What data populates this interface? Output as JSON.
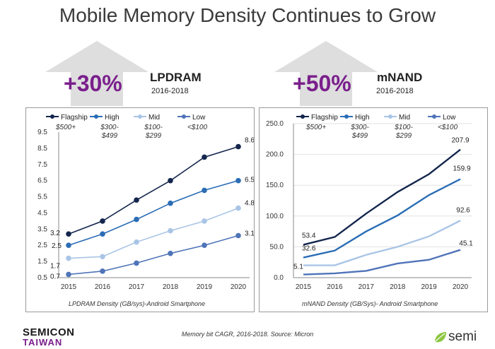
{
  "page": {
    "title": "Mobile Memory Density Continues to Grow",
    "footnote": "Memory bit CAGR, 2016-2018. Source: Micron",
    "logo_left_line1": "SEMICON",
    "logo_left_line2": "TAIWAN",
    "logo_right": "semi"
  },
  "left": {
    "growth": "+30%",
    "category": "LPDRAM",
    "years": "2016-2018",
    "caption": "LPDRAM Density (GB/sys)-Android Smartphone"
  },
  "right": {
    "growth": "+50%",
    "category": "mNAND",
    "years": "2016-2018",
    "caption": "mNAND Density (GB/Sys)- Android Smartphone"
  },
  "colors": {
    "flagship": "#14264d",
    "high": "#2a6db5",
    "mid": "#a9c5e6",
    "low": "#4f74b8",
    "accent": "#7a1f8c",
    "arrow": "#d9d9d9"
  },
  "chart_data": [
    {
      "type": "line",
      "x": [
        "2015",
        "2016",
        "2017",
        "2018",
        "2019",
        "2020"
      ],
      "yticks": [
        "0.5",
        "1.5",
        "2.5",
        "3.5",
        "4.5",
        "5.5",
        "6.5",
        "7.5",
        "8.5",
        "9.5"
      ],
      "ylim": [
        0.5,
        9.5
      ],
      "series": [
        {
          "key": "flagship",
          "name": "Flagship",
          "price": "$500+",
          "values": [
            3.2,
            4.0,
            5.3,
            6.5,
            7.95,
            8.6
          ]
        },
        {
          "key": "high",
          "name": "High",
          "price": "$300-\n$499",
          "values": [
            2.5,
            3.2,
            4.1,
            5.1,
            5.9,
            6.5
          ]
        },
        {
          "key": "mid",
          "name": "Mid",
          "price": "$100-\n$299",
          "values": [
            1.7,
            1.8,
            2.7,
            3.4,
            4.0,
            4.8
          ]
        },
        {
          "key": "low",
          "name": "Low",
          "price": "<$100",
          "values": [
            0.7,
            0.9,
            1.4,
            2.0,
            2.5,
            3.1
          ]
        }
      ],
      "data_labels": [
        {
          "series": 0,
          "index": 0,
          "text": "3.2"
        },
        {
          "series": 1,
          "index": 0,
          "text": "2.5"
        },
        {
          "series": 2,
          "index": 0,
          "text": "1.7"
        },
        {
          "series": 3,
          "index": 0,
          "text": "0.7"
        },
        {
          "series": 0,
          "index": 5,
          "text": "8.6"
        },
        {
          "series": 1,
          "index": 5,
          "text": "6.5"
        },
        {
          "series": 2,
          "index": 5,
          "text": "4.8"
        },
        {
          "series": 3,
          "index": 5,
          "text": "3.1"
        }
      ],
      "markers": true,
      "legend": "top",
      "grid": false
    },
    {
      "type": "line",
      "x": [
        "2015",
        "2016",
        "2017",
        "2018",
        "2019",
        "2020"
      ],
      "yticks": [
        "0.0",
        "50.0",
        "100.0",
        "150.0",
        "200.0",
        "250.0"
      ],
      "ylim": [
        0,
        250
      ],
      "series": [
        {
          "key": "flagship",
          "name": "Flagship",
          "price": "$500+",
          "values": [
            53.4,
            66,
            104,
            139,
            168,
            207.9
          ]
        },
        {
          "key": "high",
          "name": "High",
          "price": "$300-\n$499",
          "values": [
            32.6,
            44,
            75,
            101,
            134,
            159.9
          ]
        },
        {
          "key": "mid",
          "name": "Mid",
          "price": "$100-\n$299",
          "values": [
            20,
            20,
            37,
            50,
            67,
            92.6
          ]
        },
        {
          "key": "low",
          "name": "Low",
          "price": "<$100",
          "values": [
            5.1,
            7,
            11,
            23,
            29,
            45.1
          ]
        }
      ],
      "data_labels": [
        {
          "series": 0,
          "index": 0,
          "text": "53.4"
        },
        {
          "series": 1,
          "index": 0,
          "text": "32.6"
        },
        {
          "series": 3,
          "index": 0,
          "text": "5.1"
        },
        {
          "series": 0,
          "index": 5,
          "text": "207.9"
        },
        {
          "series": 1,
          "index": 5,
          "text": "159.9"
        },
        {
          "series": 2,
          "index": 5,
          "text": "92.6"
        },
        {
          "series": 3,
          "index": 5,
          "text": "45.1"
        }
      ],
      "markers": false,
      "legend": "top",
      "grid": true
    }
  ]
}
